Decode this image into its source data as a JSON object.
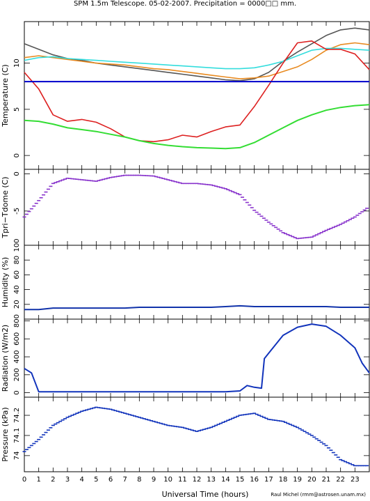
{
  "title": "SPM 1.5m Telescope. 05-02-2007. Precipitation = 0000□□ mm.",
  "credit": "Raul Michel (rmm@astrosen.unam.mx)",
  "chart_data": [
    {
      "type": "line",
      "ylabel": "Temperature (C)",
      "xlabel": "",
      "xlim": [
        0,
        24
      ],
      "ylim": [
        -1.5,
        14.5
      ],
      "yticks": [
        0,
        5,
        10
      ],
      "x": [
        0,
        1,
        2,
        3,
        4,
        5,
        6,
        7,
        8,
        9,
        10,
        11,
        12,
        13,
        14,
        15,
        16,
        17,
        18,
        19,
        20,
        21,
        22,
        23,
        24
      ],
      "series": [
        {
          "color": "#555555",
          "values": [
            12.1,
            11.5,
            10.9,
            10.5,
            10.3,
            10.0,
            9.8,
            9.6,
            9.4,
            9.2,
            9.0,
            8.8,
            8.6,
            8.4,
            8.2,
            8.1,
            8.3,
            9.0,
            10.2,
            11.2,
            12.1,
            13.0,
            13.6,
            13.8,
            13.6
          ]
        },
        {
          "color": "#e88a20",
          "values": [
            10.6,
            10.8,
            10.6,
            10.4,
            10.2,
            10.0,
            9.9,
            9.8,
            9.6,
            9.4,
            9.3,
            9.1,
            8.9,
            8.7,
            8.5,
            8.3,
            8.4,
            8.6,
            9.1,
            9.6,
            10.4,
            11.4,
            12.0,
            12.2,
            12.0
          ]
        },
        {
          "color": "#33dddd",
          "values": [
            10.3,
            10.6,
            10.7,
            10.5,
            10.4,
            10.3,
            10.2,
            10.1,
            10.0,
            9.9,
            9.8,
            9.7,
            9.6,
            9.5,
            9.4,
            9.4,
            9.5,
            9.8,
            10.2,
            10.8,
            11.4,
            11.6,
            11.6,
            11.5,
            11.4
          ]
        },
        {
          "color": "#dd2020",
          "values": [
            9.0,
            7.2,
            4.4,
            3.7,
            3.9,
            3.6,
            2.9,
            2.0,
            1.6,
            1.5,
            1.7,
            2.2,
            2.0,
            2.6,
            3.1,
            3.3,
            5.3,
            7.6,
            10.0,
            12.2,
            12.4,
            11.5,
            11.5,
            11.0,
            9.3
          ]
        },
        {
          "color": "#33dd33",
          "values": [
            3.8,
            3.7,
            3.4,
            3.0,
            2.8,
            2.6,
            2.3,
            2.0,
            1.6,
            1.3,
            1.1,
            0.95,
            0.85,
            0.8,
            0.75,
            0.85,
            1.4,
            2.2,
            3.0,
            3.8,
            4.4,
            4.9,
            5.2,
            5.4,
            5.5
          ]
        },
        {
          "color": "#0000cc",
          "values": [
            8.0,
            8.0,
            8.0,
            8.0,
            8.0,
            8.0,
            8.0,
            8.0,
            8.0,
            8.0,
            8.0,
            8.0,
            8.0,
            8.0,
            8.0,
            8.0,
            8.0,
            8.0,
            8.0,
            8.0,
            8.0,
            8.0,
            8.0,
            8.0,
            8.0
          ]
        }
      ]
    },
    {
      "type": "scatter",
      "ylabel": "Tpri−Tdome (C)",
      "xlim": [
        0,
        24
      ],
      "ylim": [
        -9.6,
        0.6
      ],
      "yticks": [
        -5,
        0
      ],
      "x": [
        0,
        1,
        2,
        3,
        4,
        5,
        6,
        7,
        8,
        9,
        10,
        11,
        12,
        13,
        14,
        15,
        16,
        17,
        18,
        19,
        20,
        21,
        22,
        23,
        24
      ],
      "series": [
        {
          "color": "#8833cc",
          "values": [
            -5.8,
            -3.6,
            -1.3,
            -0.6,
            -0.8,
            -1.0,
            -0.5,
            -0.2,
            -0.2,
            -0.3,
            -0.8,
            -1.3,
            -1.3,
            -1.5,
            -2.0,
            -2.8,
            -4.9,
            -6.5,
            -7.9,
            -8.7,
            -8.5,
            -7.6,
            -6.8,
            -5.8,
            -4.4
          ]
        }
      ]
    },
    {
      "type": "line",
      "ylabel": "Humidity (%)",
      "xlim": [
        0,
        24
      ],
      "ylim": [
        0,
        100
      ],
      "yticks": [
        20,
        40,
        60,
        80,
        100
      ],
      "x": [
        0,
        1,
        2,
        3,
        4,
        5,
        6,
        7,
        8,
        9,
        10,
        11,
        12,
        13,
        14,
        15,
        16,
        17,
        18,
        19,
        20,
        21,
        22,
        23,
        24
      ],
      "series": [
        {
          "color": "#1133aa",
          "values": [
            13,
            13,
            15,
            15,
            15,
            15,
            15,
            15,
            16,
            16,
            16,
            16,
            16,
            16,
            17,
            18,
            17,
            17,
            17,
            17,
            17,
            17,
            16,
            16,
            16
          ]
        }
      ]
    },
    {
      "type": "line",
      "ylabel": "Radiation (W/m2)",
      "xlim": [
        0,
        24
      ],
      "ylim": [
        -50,
        820
      ],
      "yticks": [
        0,
        200,
        400,
        600,
        800
      ],
      "x": [
        0,
        0.5,
        1,
        2,
        3,
        4,
        5,
        6,
        7,
        8,
        9,
        10,
        11,
        12,
        13,
        14,
        15,
        15.5,
        16,
        16.5,
        16.7,
        17,
        18,
        19,
        20,
        21,
        22,
        23,
        23.5,
        24
      ],
      "series": [
        {
          "color": "#1133bb",
          "values": [
            270,
            220,
            10,
            10,
            10,
            10,
            10,
            10,
            10,
            10,
            10,
            10,
            10,
            10,
            10,
            10,
            20,
            80,
            60,
            50,
            380,
            440,
            640,
            730,
            765,
            740,
            640,
            500,
            330,
            220
          ]
        }
      ]
    },
    {
      "type": "scatter",
      "ylabel": "Pressure (kPa)",
      "xlim": [
        0,
        24
      ],
      "ylim": [
        73.92,
        74.29
      ],
      "yticks": [
        74,
        74.1,
        74.2
      ],
      "x": [
        0,
        1,
        2,
        3,
        4,
        5,
        6,
        7,
        8,
        9,
        10,
        11,
        12,
        13,
        14,
        15,
        16,
        17,
        18,
        19,
        20,
        21,
        22,
        23,
        24
      ],
      "series": [
        {
          "color": "#1133bb",
          "values": [
            74.02,
            74.08,
            74.15,
            74.19,
            74.22,
            74.24,
            74.23,
            74.21,
            74.19,
            74.17,
            74.15,
            74.14,
            74.12,
            74.14,
            74.17,
            74.2,
            74.21,
            74.18,
            74.17,
            74.14,
            74.1,
            74.05,
            73.98,
            73.95,
            73.95
          ]
        }
      ]
    }
  ],
  "shared_x_axis": {
    "xlabel": "Universal Time (hours)",
    "ticks": [
      "0",
      "1",
      "2",
      "3",
      "4",
      "5",
      "6",
      "7",
      "8",
      "9",
      "10",
      "11",
      "12",
      "13",
      "14",
      "15",
      "16",
      "17",
      "18",
      "19",
      "20",
      "21",
      "22",
      "23"
    ]
  }
}
